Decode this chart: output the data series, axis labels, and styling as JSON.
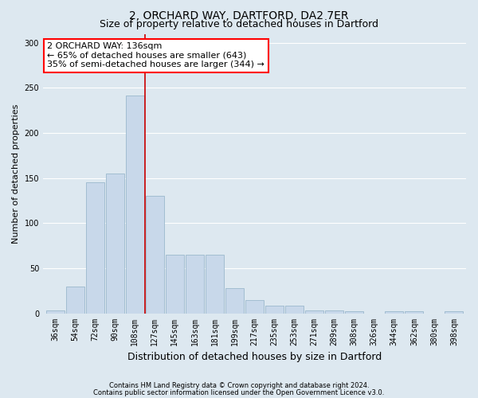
{
  "title1": "2, ORCHARD WAY, DARTFORD, DA2 7ER",
  "title2": "Size of property relative to detached houses in Dartford",
  "xlabel": "Distribution of detached houses by size in Dartford",
  "ylabel": "Number of detached properties",
  "categories": [
    "36sqm",
    "54sqm",
    "72sqm",
    "90sqm",
    "108sqm",
    "127sqm",
    "145sqm",
    "163sqm",
    "181sqm",
    "199sqm",
    "217sqm",
    "235sqm",
    "253sqm",
    "271sqm",
    "289sqm",
    "308sqm",
    "326sqm",
    "344sqm",
    "362sqm",
    "380sqm",
    "398sqm"
  ],
  "values": [
    3,
    30,
    145,
    155,
    242,
    130,
    65,
    65,
    65,
    28,
    15,
    8,
    8,
    3,
    3,
    2,
    0,
    2,
    2,
    0,
    2
  ],
  "bar_color": "#c8d8ea",
  "bar_edge_color": "#9ab8cc",
  "bar_linewidth": 0.6,
  "vline_color": "#cc0000",
  "vline_x_idx": 4,
  "annotation_text": "2 ORCHARD WAY: 136sqm\n← 65% of detached houses are smaller (643)\n35% of semi-detached houses are larger (344) →",
  "annotation_box_facecolor": "white",
  "annotation_box_edgecolor": "red",
  "ylim": [
    0,
    310
  ],
  "yticks": [
    0,
    50,
    100,
    150,
    200,
    250,
    300
  ],
  "footer1": "Contains HM Land Registry data © Crown copyright and database right 2024.",
  "footer2": "Contains public sector information licensed under the Open Government Licence v3.0.",
  "bg_color": "#dde8f0",
  "plot_bg_color": "#dde8f0",
  "title1_fontsize": 10,
  "title2_fontsize": 9,
  "xlabel_fontsize": 9,
  "ylabel_fontsize": 8,
  "tick_fontsize": 7,
  "footer_fontsize": 6,
  "annot_fontsize": 8
}
